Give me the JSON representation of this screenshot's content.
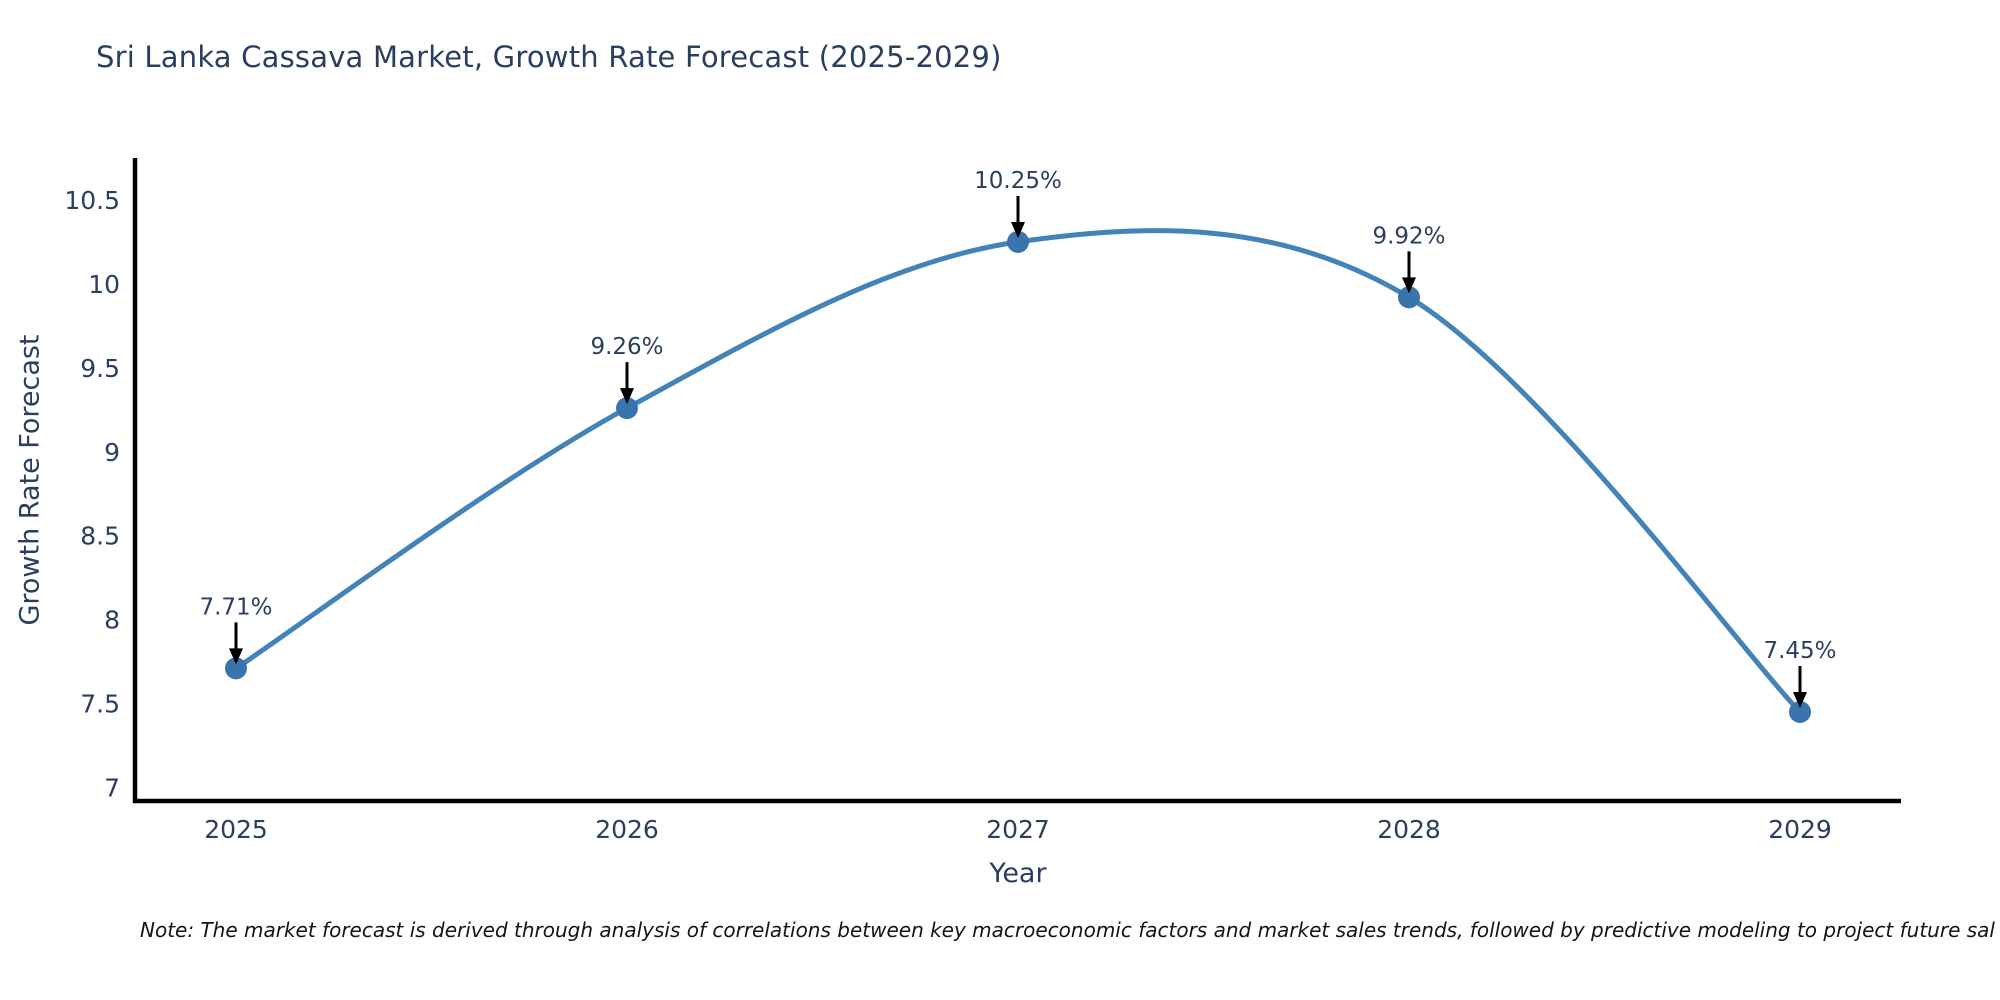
{
  "title": "Sri Lanka Cassava Market, Growth Rate Forecast (2025-2029)",
  "note": "Note: The market forecast is derived through analysis of correlations between key macroeconomic factors and market sales trends, followed by predictive modeling to project future sal",
  "chart_data": {
    "type": "line",
    "title": "Sri Lanka Cassava Market, Growth Rate Forecast (2025-2029)",
    "xlabel": "Year",
    "ylabel": "Growth Rate Forecast",
    "categories": [
      "2025",
      "2026",
      "2027",
      "2028",
      "2029"
    ],
    "values": [
      7.71,
      9.26,
      10.25,
      9.92,
      7.45
    ],
    "point_labels": [
      "7.71%",
      "9.26%",
      "10.25%",
      "9.92%",
      "7.45%"
    ],
    "ytick_labels": [
      "7",
      "7.5",
      "8",
      "8.5",
      "9",
      "9.5",
      "10",
      "10.5"
    ],
    "yticks": [
      7,
      7.5,
      8,
      8.5,
      9,
      9.5,
      10,
      10.5
    ],
    "ylim": [
      6.92,
      10.75
    ],
    "line_shape": "spline",
    "grid": false,
    "legend": "none",
    "colors": {
      "line": "#4383b8",
      "marker": "#3a74ad",
      "axis": "#000000",
      "tick_text": "#2a3f5f",
      "annotation_text": "#2a3f5f",
      "arrow": "#000000",
      "background": "#ffffff"
    }
  }
}
